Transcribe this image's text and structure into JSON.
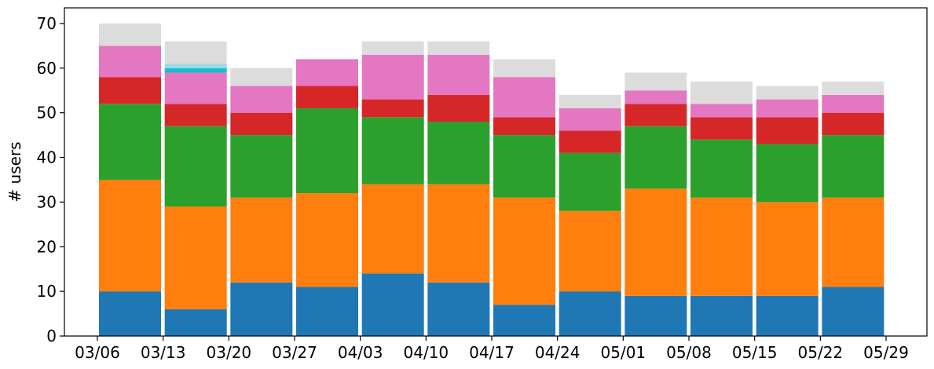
{
  "chart_data": {
    "type": "bar",
    "stacked": true,
    "ylabel": "# users",
    "xlabel": "",
    "title": "",
    "ylim": [
      0,
      73.5
    ],
    "yticks": [
      0,
      10,
      20,
      30,
      40,
      50,
      60,
      70
    ],
    "xtick_labels": [
      "03/06",
      "03/13",
      "03/20",
      "03/27",
      "04/03",
      "04/10",
      "04/17",
      "04/24",
      "05/01",
      "05/08",
      "05/15",
      "05/22",
      "05/29"
    ],
    "grid": false,
    "legend": "none",
    "categories": [
      "03/06",
      "03/13",
      "03/20",
      "03/27",
      "04/03",
      "04/10",
      "04/17",
      "04/24",
      "05/01",
      "05/08",
      "05/15",
      "05/22"
    ],
    "series": [
      {
        "color": "#1f77b4",
        "values": [
          10,
          6,
          12,
          11,
          14,
          12,
          7,
          10,
          9,
          9,
          9,
          11
        ]
      },
      {
        "color": "#ff7f0e",
        "values": [
          25,
          23,
          19,
          21,
          20,
          22,
          24,
          18,
          24,
          22,
          21,
          20
        ]
      },
      {
        "color": "#2ca02c",
        "values": [
          17,
          18,
          14,
          19,
          15,
          14,
          14,
          13,
          14,
          13,
          13,
          14
        ]
      },
      {
        "color": "#d62728",
        "values": [
          6,
          5,
          5,
          5,
          4,
          6,
          4,
          5,
          5,
          5,
          6,
          5
        ]
      },
      {
        "color": "#e377c2",
        "values": [
          7,
          7,
          6,
          6,
          10,
          9,
          9,
          5,
          3,
          3,
          4,
          4
        ]
      },
      {
        "color": "#17becf",
        "values": [
          0,
          1,
          0,
          0,
          0,
          0,
          0,
          0,
          0,
          0,
          0,
          0
        ]
      },
      {
        "color": "#9edae5",
        "values": [
          0,
          1,
          0,
          0,
          0,
          0,
          0,
          0,
          0,
          0,
          0,
          0
        ]
      },
      {
        "color": "#dcdcdc",
        "values": [
          5,
          5,
          4,
          0,
          3,
          3,
          4,
          3,
          4,
          5,
          3,
          3
        ]
      }
    ]
  }
}
